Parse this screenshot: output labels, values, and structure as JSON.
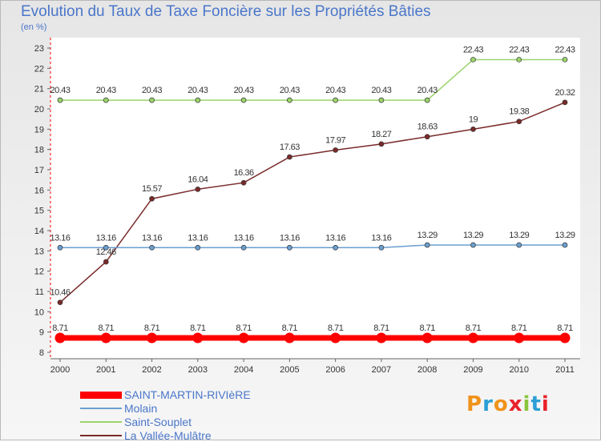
{
  "header": {
    "title": "Evolution du Taux de Taxe Foncière sur les Propriétés Bâties",
    "subtitle": "(en %)"
  },
  "logo": {
    "text": "Proxiti",
    "colors": [
      "#f0931b",
      "#2c9fd6",
      "#f0931b",
      "#e8232b",
      "#8bc53f",
      "#2c9fd6",
      "#e8232b"
    ]
  },
  "chart_data": {
    "type": "line",
    "title": "Evolution du Taux de Taxe Foncière sur les Propriétés Bâties",
    "ylabel": "(en %)",
    "xlabel": "",
    "x": [
      "2000",
      "2001",
      "2002",
      "2003",
      "2004",
      "2005",
      "2006",
      "2007",
      "2008",
      "2009",
      "2010",
      "2011"
    ],
    "ylim": [
      8,
      23
    ],
    "yticks": [
      "8",
      "9",
      "10",
      "11",
      "12",
      "13",
      "14",
      "15",
      "16",
      "17",
      "18",
      "19",
      "20",
      "21",
      "22",
      "23"
    ],
    "grid": false,
    "legend_position": "bottom-left",
    "series": [
      {
        "name": "SAINT-MARTIN-RIVIèRE",
        "color": "#ff0000",
        "thick": true,
        "values": [
          8.71,
          8.71,
          8.71,
          8.71,
          8.71,
          8.71,
          8.71,
          8.71,
          8.71,
          8.71,
          8.71,
          8.71
        ],
        "labels": [
          "8.71",
          "8.71",
          "8.71",
          "8.71",
          "8.71",
          "8.71",
          "8.71",
          "8.71",
          "8.71",
          "8.71",
          "8.71",
          "8.71"
        ]
      },
      {
        "name": "Molain",
        "color": "#6a9fd0",
        "thick": false,
        "values": [
          13.16,
          13.16,
          13.16,
          13.16,
          13.16,
          13.16,
          13.16,
          13.16,
          13.29,
          13.29,
          13.29,
          13.29
        ],
        "labels": [
          "13.16",
          "13.16",
          "13.16",
          "13.16",
          "13.16",
          "13.16",
          "13.16",
          "13.16",
          "13.29",
          "13.29",
          "13.29",
          "13.29"
        ]
      },
      {
        "name": "Saint-Souplet",
        "color": "#9bd46a",
        "thick": false,
        "values": [
          20.43,
          20.43,
          20.43,
          20.43,
          20.43,
          20.43,
          20.43,
          20.43,
          20.43,
          22.43,
          22.43,
          22.43
        ],
        "labels": [
          "20.43",
          "20.43",
          "20.43",
          "20.43",
          "20.43",
          "20.43",
          "20.43",
          "20.43",
          "20.43",
          "22.43",
          "22.43",
          "22.43"
        ]
      },
      {
        "name": "La Vallée-Mulâtre",
        "color": "#7a2a2a",
        "thick": false,
        "values": [
          10.46,
          12.46,
          15.57,
          16.04,
          16.36,
          17.63,
          17.97,
          18.27,
          18.63,
          19,
          19.38,
          20.32
        ],
        "labels": [
          "10.46",
          "12.46",
          "15.57",
          "16.04",
          "16.36",
          "17.63",
          "17.97",
          "18.27",
          "18.63",
          "19",
          "19.38",
          "20.32"
        ]
      }
    ]
  }
}
